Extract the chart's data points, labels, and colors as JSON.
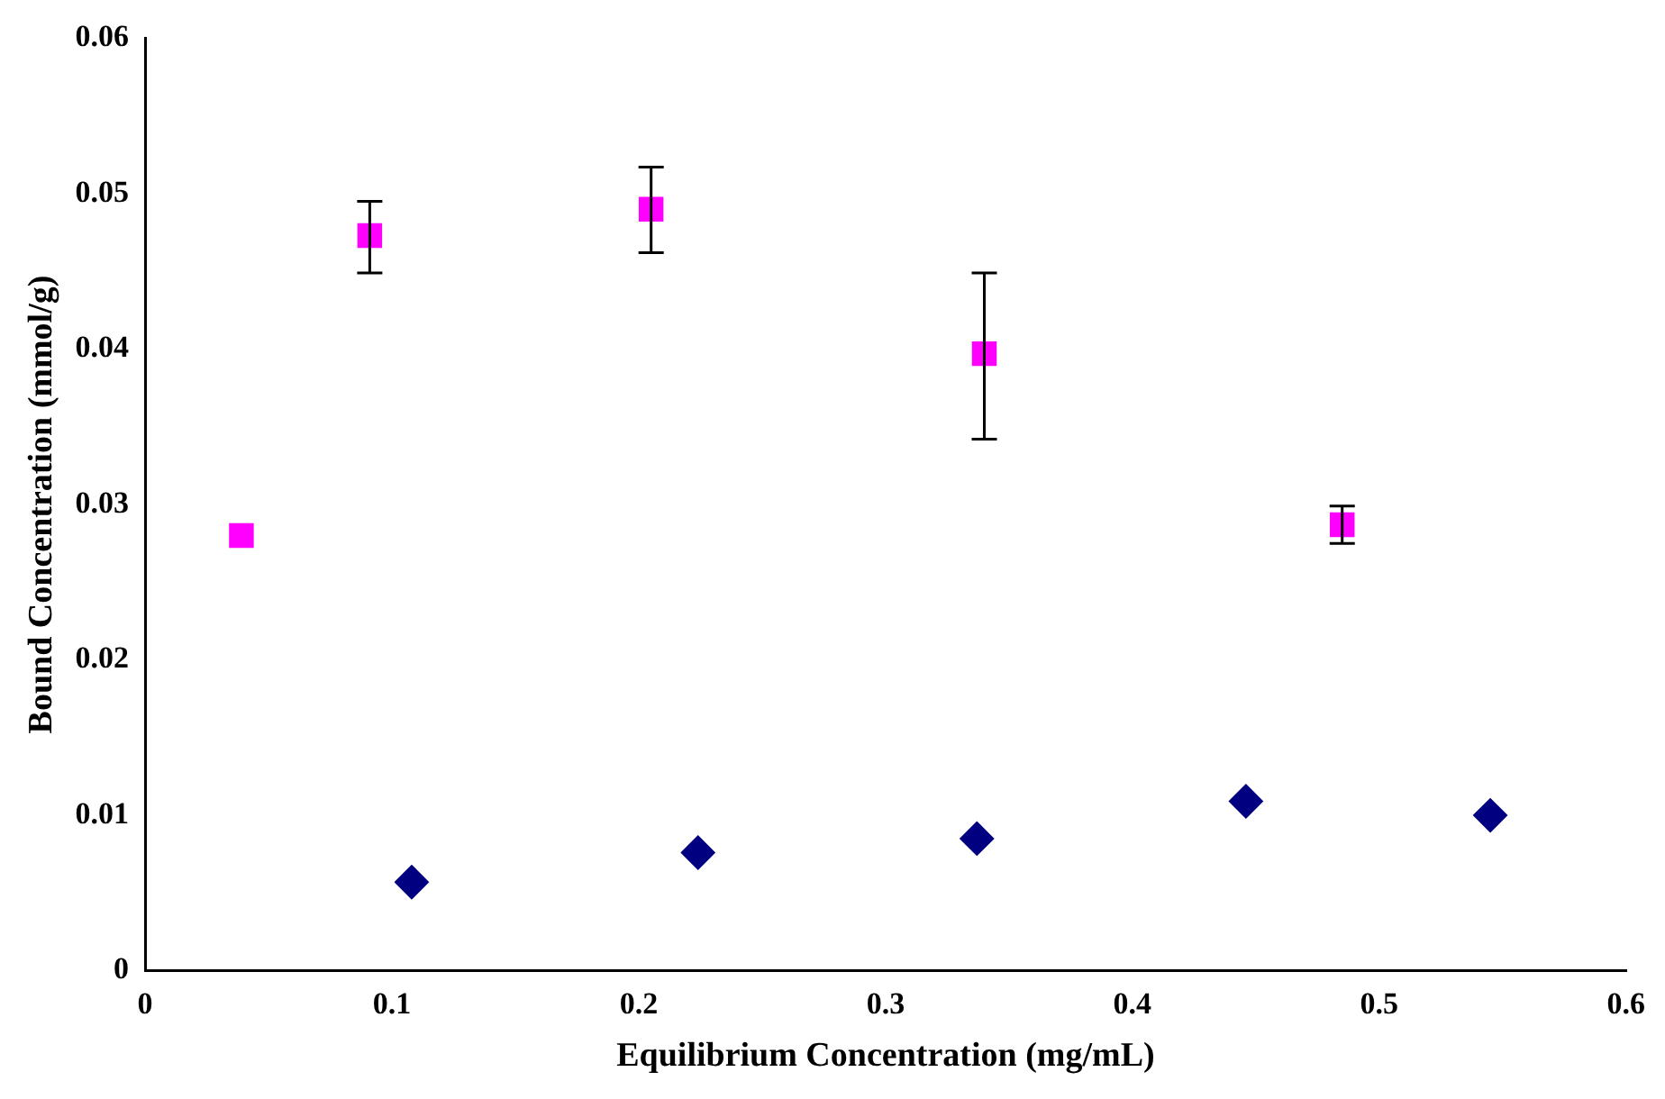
{
  "chart_data": {
    "type": "scatter",
    "xlabel": "Equilibrium Concentration (mg/mL)",
    "ylabel": "Bound Concentration (mmol/g)",
    "xlim": [
      0,
      0.6
    ],
    "xticks": [
      0,
      0.1,
      0.2,
      0.3,
      0.4,
      0.5,
      0.6
    ],
    "ylim": [
      0,
      0.06
    ],
    "yticks": [
      0,
      0.01,
      0.02,
      0.03,
      0.04,
      0.05,
      0.06
    ],
    "grid": false,
    "legend": false,
    "series": [
      {
        "color": "#ff00ff",
        "marker": "square",
        "x": [
          0.039,
          0.091,
          0.205,
          0.34,
          0.485
        ],
        "values": [
          0.028,
          0.0473,
          0.049,
          0.0397,
          0.0287
        ],
        "errors": [
          null,
          [
            0.0449,
            0.0495
          ],
          [
            0.0462,
            0.0517
          ],
          [
            0.0342,
            0.0449
          ],
          [
            0.0275,
            0.0299
          ]
        ]
      },
      {
        "color": "#000080",
        "marker": "diamond",
        "x": [
          0.108,
          0.224,
          0.337,
          0.446,
          0.545
        ],
        "values": [
          0.0057,
          0.0076,
          0.0085,
          0.0109,
          0.01
        ]
      }
    ]
  }
}
